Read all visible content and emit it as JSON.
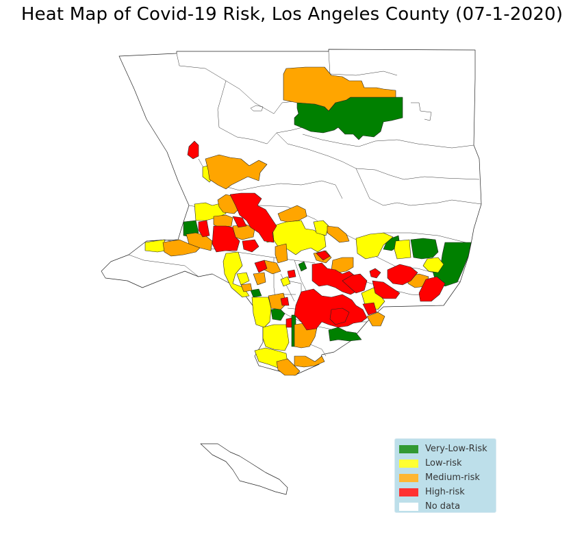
{
  "title": "Heat Map of Covid-19 Risk, Los Angeles County (07-1-2020)",
  "legend": [
    {
      "label": "Very-Low-Risk",
      "color": "#008000"
    },
    {
      "label": "Low-risk",
      "color": "#ffff00"
    },
    {
      "label": "Medium-risk",
      "color": "#ffa500"
    },
    {
      "label": "High-risk",
      "color": "#ff0000"
    },
    {
      "label": "No data",
      "color": "#ffffff"
    }
  ],
  "colors": {
    "very_low": "#008000",
    "low": "#ffff00",
    "medium": "#ffa500",
    "high": "#ff0000",
    "no_data": "#ffffff",
    "legend_bg": "#add8e6",
    "border": "#222222"
  }
}
